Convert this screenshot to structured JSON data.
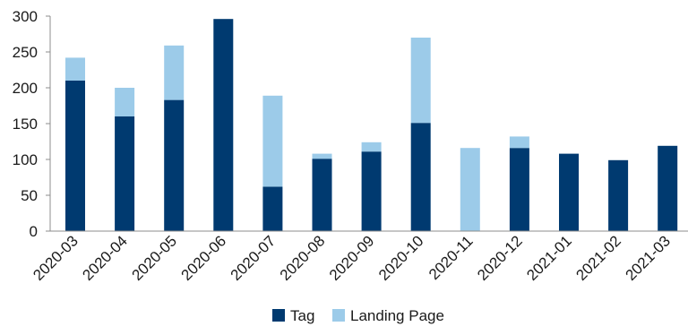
{
  "chart_data": {
    "type": "bar",
    "stacked": true,
    "title": "",
    "xlabel": "",
    "ylabel": "",
    "ylim": [
      0,
      300
    ],
    "yticks": [
      0,
      50,
      100,
      150,
      200,
      250,
      300
    ],
    "grid": false,
    "legend_position": "bottom",
    "categories": [
      "2020-03",
      "2020-04",
      "2020-05",
      "2020-06",
      "2020-07",
      "2020-08",
      "2020-09",
      "2020-10",
      "2020-11",
      "2020-12",
      "2021-01",
      "2021-02",
      "2021-03"
    ],
    "series": [
      {
        "name": "Tag",
        "color": "#003a70",
        "values": [
          210,
          160,
          183,
          296,
          62,
          101,
          111,
          151,
          0,
          116,
          108,
          99,
          119
        ]
      },
      {
        "name": "Landing Page",
        "color": "#9ccbe9",
        "values": [
          32,
          40,
          76,
          0,
          127,
          7,
          13,
          119,
          116,
          16,
          0,
          0,
          0
        ]
      }
    ]
  }
}
